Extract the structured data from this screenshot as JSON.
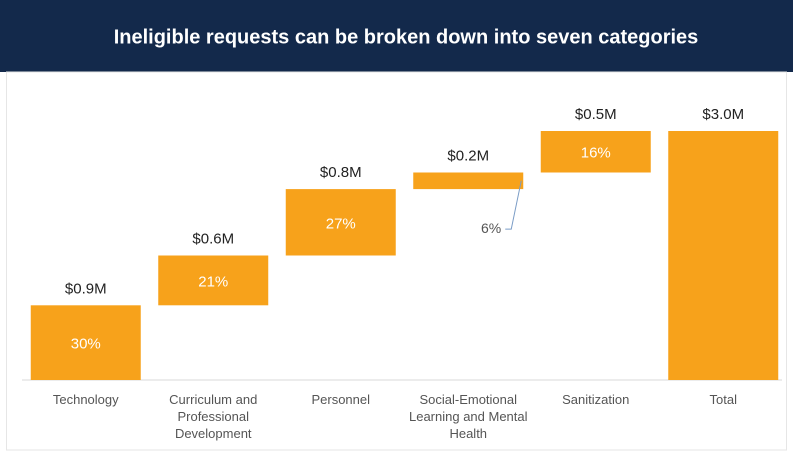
{
  "chart_data": {
    "type": "waterfall",
    "title": "Ineligible requests can be broken down into seven categories",
    "categories": [
      "Technology",
      "Curriculum and Professional Development",
      "Personnel",
      "Social-Emotional Learning and Mental Health",
      "Sanitization",
      "Total"
    ],
    "values": [
      0.9,
      0.6,
      0.8,
      0.2,
      0.5,
      3.0
    ],
    "value_labels": [
      "$0.9M",
      "$0.6M",
      "$0.8M",
      "$0.2M",
      "$0.5M",
      "$3.0M"
    ],
    "shares": [
      30,
      21,
      27,
      6,
      16
    ],
    "share_labels": [
      "30%",
      "21%",
      "27%",
      "6%",
      "16%"
    ],
    "color": "#f7a21b",
    "ylim": [
      0,
      3.0
    ]
  }
}
